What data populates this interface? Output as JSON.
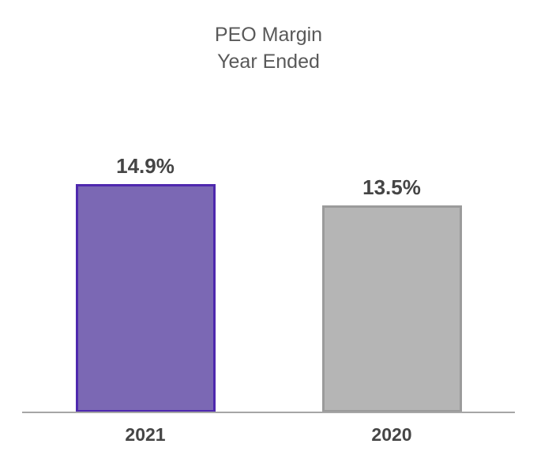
{
  "title": {
    "line1": "PEO Margin",
    "line2": "Year Ended"
  },
  "chart_data": {
    "type": "bar",
    "title": "PEO Margin Year Ended",
    "categories": [
      "2021",
      "2020"
    ],
    "values": [
      14.9,
      13.5
    ],
    "value_labels": [
      "14.9%",
      "13.5%"
    ],
    "series_colors": [
      {
        "fill": "#7b68b4",
        "stroke": "#4e28ae"
      },
      {
        "fill": "#b5b5b5",
        "stroke": "#9b9b9b"
      }
    ],
    "xlabel": "",
    "ylabel": "",
    "ylim": [
      0,
      16
    ],
    "grid": false,
    "legend": "none",
    "axis_line_color": "#a6a6a6",
    "value_label_color": "#454545",
    "category_label_color": "#454545",
    "title_color": "#595959",
    "background": "#ffffff"
  }
}
